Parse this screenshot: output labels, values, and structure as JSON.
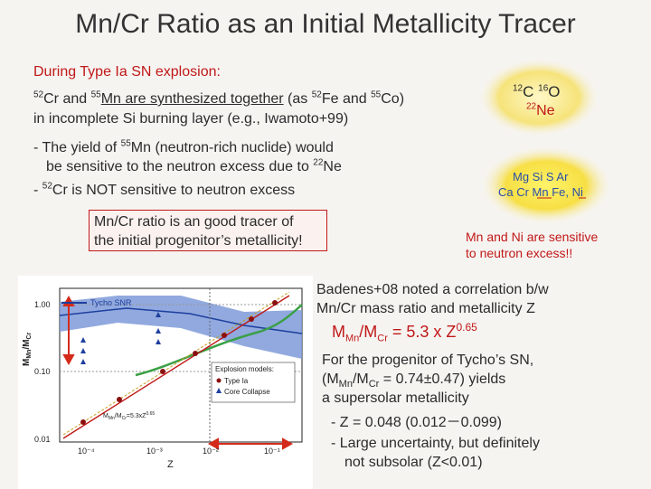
{
  "title": "Mn/Cr Ratio as an Initial Metallicity Tracer",
  "left": {
    "heading": "During Type Ia SN explosion:",
    "l2_a": "Cr and ",
    "l2_b": "Mn are synthesized together",
    "l2_c": " (as ",
    "l2_d": "Fe and ",
    "l2_e": "Co)",
    "iso52": "52",
    "iso55": "55",
    "l3": "in incomplete Si burning layer (e.g., Iwamoto+99)",
    "b1_a": "- The yield of ",
    "b1_b": "Mn (neutron-rich nuclide) would",
    "b1_c": "be sensitive to the neutron excess due to ",
    "b1_d": "Ne",
    "iso22": "22",
    "b2_a": "- ",
    "b2_b": "Cr is NOT sensitive to neutron excess",
    "box_l1": "Mn/Cr ratio is an good tracer of",
    "box_l2": "the initial progenitor’s metallicity!"
  },
  "right": {
    "core_a": "C",
    "core_b": "O",
    "core_c": "Ne",
    "iso12": "12",
    "iso16": "16",
    "iso22": "22",
    "shell_l1": "Mg Si S Ar",
    "shell_l2": "Ca Cr Mn Fe, Ni",
    "sens_l1": "Mn and Ni are sensitive",
    "sens_l2": "to neutron excess!!",
    "bad_l1": "Badenes+08 noted a correlation b/w",
    "bad_l2": "Mn/Cr mass ratio and metallicity Z",
    "formula_lead": "M",
    "formula_mn": "Mn",
    "formula_mid": "/M",
    "formula_cr": "Cr",
    "formula_eq": " = 5.3 x Z",
    "formula_exp": "0.65",
    "tycho_l1": "For the progenitor of Tycho’s SN,",
    "tycho_l2_a": "(M",
    "tycho_l2_b": "/M",
    "tycho_l2_c": " = 0.74±0.47) yields",
    "tycho_l3": "a supersolar metallicity",
    "z_line": "- Z = 0.048 (0.012－0.099)",
    "unc_l1": "- Large uncertainty, but definitely",
    "unc_l2": "not subsolar (Z<0.01)"
  },
  "plot": {
    "ytick1": "1.00",
    "ytick2": "0.10",
    "ytick3": "0.01",
    "xtick1": "10⁻⁴",
    "xtick2": "10⁻³",
    "xtick3": "10⁻²",
    "xtick4": "10⁻¹",
    "xlabel": "Z",
    "ylabel": "M",
    "tycho_label": "Tycho SNR",
    "legend_title": "Explosion models:",
    "legend_ia_l1": "Type Ia",
    "legend_cc_l1": "Core Collapse",
    "fit_label": "M",
    "colors": {
      "red": "#c01818",
      "band": "#2d55b8",
      "green": "#3aa045",
      "arrow": "#d42a1a"
    }
  }
}
